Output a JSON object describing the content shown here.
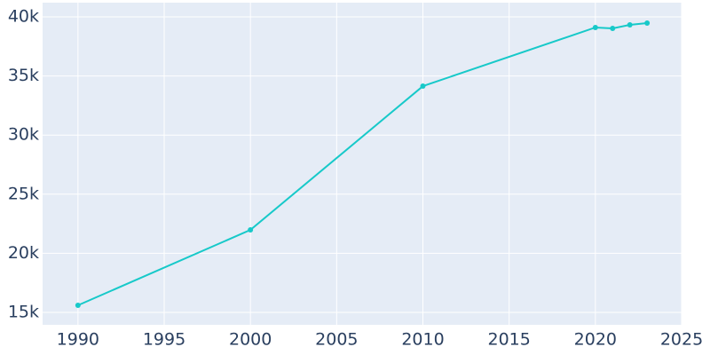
{
  "chart_data": {
    "type": "line",
    "x": [
      1990,
      2000,
      2010,
      2020,
      2021,
      2022,
      2023
    ],
    "series": [
      {
        "color": "#17c9c9",
        "values": [
          15600,
          21980,
          34140,
          39100,
          39020,
          39320,
          39470
        ]
      }
    ],
    "xlim": [
      1987.95,
      2025
    ],
    "xticks": [
      1990,
      1995,
      2000,
      2005,
      2010,
      2015,
      2020,
      2025
    ],
    "ylim": [
      13950,
      41200
    ],
    "yticks": [
      {
        "value": 15000,
        "label": "15k"
      },
      {
        "value": 20000,
        "label": "20k"
      },
      {
        "value": 25000,
        "label": "25k"
      },
      {
        "value": 30000,
        "label": "30k"
      },
      {
        "value": 35000,
        "label": "35k"
      },
      {
        "value": 40000,
        "label": "40k"
      }
    ],
    "grid": true
  }
}
